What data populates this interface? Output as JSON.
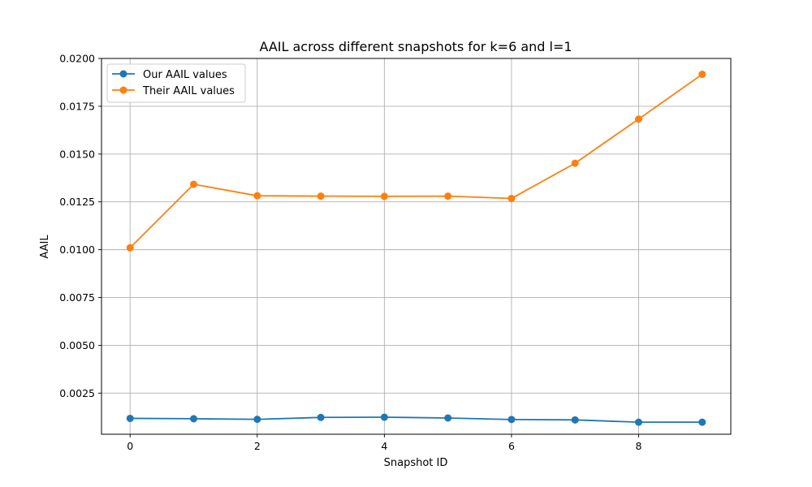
{
  "chart_data": {
    "type": "line",
    "title": "AAIL across different snapshots for k=6 and l=1",
    "xlabel": "Snapshot ID",
    "ylabel": "AAIL",
    "x": [
      0,
      1,
      2,
      3,
      4,
      5,
      6,
      7,
      8,
      9
    ],
    "xlim": [
      -0.45,
      9.45
    ],
    "ylim": [
      0.00035,
      0.02
    ],
    "xticks": [
      0,
      2,
      4,
      6,
      8
    ],
    "xtick_labels": [
      "0",
      "2",
      "4",
      "6",
      "8"
    ],
    "yticks": [
      0.0025,
      0.005,
      0.0075,
      0.01,
      0.0125,
      0.015,
      0.0175,
      0.02
    ],
    "ytick_labels": [
      "0.0025",
      "0.0050",
      "0.0075",
      "0.0100",
      "0.0125",
      "0.0150",
      "0.0175",
      "0.0200"
    ],
    "grid": true,
    "legend_position": "top-left",
    "series": [
      {
        "name": "Our AAIL values",
        "color": "#1f77b4",
        "values": [
          0.00118,
          0.00116,
          0.00113,
          0.00123,
          0.00124,
          0.0012,
          0.00112,
          0.0011,
          0.00098,
          0.00098
        ]
      },
      {
        "name": "Their AAIL values",
        "color": "#ff7f0e",
        "values": [
          0.0101,
          0.01342,
          0.01282,
          0.0128,
          0.01279,
          0.0128,
          0.01268,
          0.01452,
          0.01683,
          0.01917
        ]
      }
    ]
  }
}
